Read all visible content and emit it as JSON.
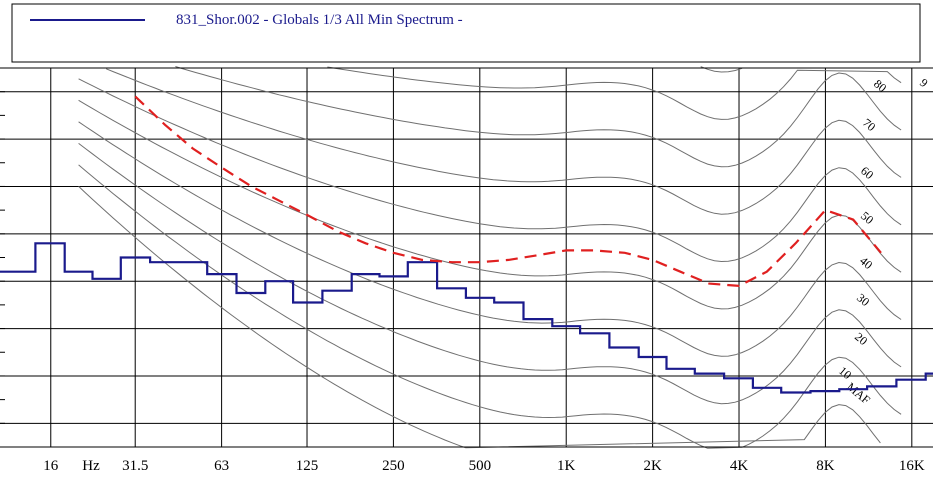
{
  "legend": {
    "label": "831_Shor.002 - Globals 1/3 All Min Spectrum -",
    "line_color": "#1a1a8c"
  },
  "chart_data": {
    "type": "line",
    "title": "",
    "xlabel": "",
    "ylabel": "",
    "x_scale": "log-frequency",
    "x_tick_labels": [
      {
        "f": 16,
        "label": "16"
      },
      {
        "f": 31.5,
        "label": "31.5"
      },
      {
        "f": 63,
        "label": "63"
      },
      {
        "f": 125,
        "label": "125"
      },
      {
        "f": 250,
        "label": "250"
      },
      {
        "f": 500,
        "label": "500"
      },
      {
        "f": 1000,
        "label": "1K"
      },
      {
        "f": 2000,
        "label": "2K"
      },
      {
        "f": 4000,
        "label": "4K"
      },
      {
        "f": 8000,
        "label": "8K"
      },
      {
        "f": 16000,
        "label": "16K"
      }
    ],
    "x_unit_label": "Hz",
    "grid": true,
    "series": [
      {
        "name": "831_Shor.002 - Globals 1/3 All Min Spectrum -",
        "style": "step",
        "color": "#1a1a8c",
        "x": [
          12.5,
          16,
          20,
          25,
          31.5,
          40,
          50,
          63,
          80,
          100,
          125,
          160,
          200,
          250,
          315,
          400,
          500,
          630,
          800,
          1000,
          1250,
          1600,
          2000,
          2500,
          3150,
          4000,
          5000,
          6300,
          8000,
          10000,
          12500,
          16000,
          20000
        ],
        "values": [
          42,
          48,
          42,
          40.5,
          45,
          44,
          44,
          41.5,
          37.5,
          40,
          35.5,
          38,
          41.5,
          41,
          44,
          38.5,
          36.5,
          35.5,
          32,
          30.5,
          29,
          26,
          24,
          21.5,
          20.5,
          19.5,
          17.5,
          16.5,
          16.8,
          17.2,
          17.8,
          19.2,
          20.5
        ]
      },
      {
        "name": "",
        "style": "dashed",
        "color": "#e02020",
        "x": [
          31.5,
          40,
          50,
          63,
          80,
          100,
          125,
          160,
          200,
          250,
          315,
          400,
          500,
          630,
          800,
          1000,
          1250,
          1600,
          2000,
          2500,
          3150,
          4000,
          5000,
          6300,
          8000,
          10000,
          12500
        ],
        "values": [
          79,
          73,
          68,
          64,
          60,
          57,
          54,
          50.5,
          48,
          46,
          44.5,
          44,
          44,
          44.5,
          45.5,
          46.5,
          46.5,
          46,
          44.5,
          42,
          39.5,
          39,
          42,
          48,
          55,
          53,
          46
        ]
      }
    ],
    "contour_labels": [
      "MAF",
      "10",
      "20",
      "30",
      "40",
      "50",
      "60",
      "70",
      "80",
      "9"
    ]
  }
}
